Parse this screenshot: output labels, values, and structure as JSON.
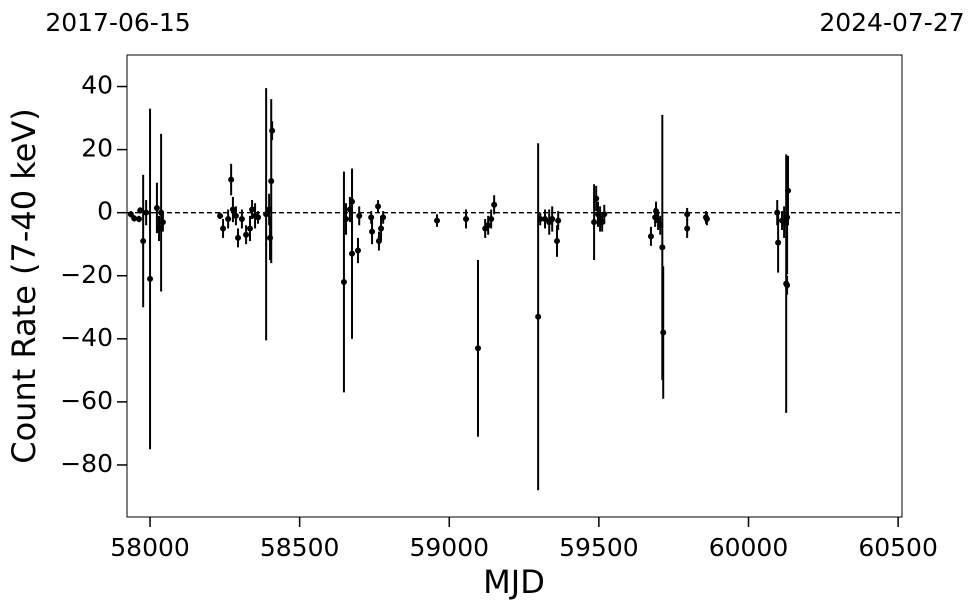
{
  "chart_data": {
    "type": "scatter",
    "annotations": [
      "2017-06-15",
      "2024-07-27"
    ],
    "xlabel": "MJD",
    "ylabel": "Count Rate (7-40 keV)",
    "color": "#000000",
    "hline": 0,
    "xlim": [
      57923,
      60513
    ],
    "ylim": [
      -96.5,
      50
    ],
    "xticks": [
      58000,
      58500,
      59000,
      59500,
      60000,
      60500
    ],
    "yticks": [
      {
        "value": -80,
        "label": "−80"
      },
      {
        "value": -60,
        "label": "−60"
      },
      {
        "value": -40,
        "label": "−40"
      },
      {
        "value": -20,
        "label": "−20"
      },
      0,
      20,
      40
    ],
    "x": [
      57936,
      57947,
      57963,
      57967,
      57977,
      57987,
      58000,
      58023,
      58030,
      58037,
      58043,
      58234,
      58244,
      58261,
      58271,
      58277,
      58287,
      58294,
      58307,
      58321,
      58334,
      58341,
      58351,
      58361,
      58388,
      58398,
      58401,
      58405,
      58408,
      58648,
      58655,
      58668,
      58675,
      58675,
      58695,
      58699,
      58739,
      58742,
      58762,
      58765,
      58772,
      58779,
      58959,
      59056,
      59096,
      59120,
      59130,
      59140,
      59150,
      59297,
      59304,
      59320,
      59334,
      59344,
      59360,
      59364,
      59484,
      59491,
      59497,
      59504,
      59511,
      59518,
      59674,
      59688,
      59691,
      59698,
      59705,
      59712,
      59715,
      59795,
      59795,
      59858,
      59861,
      60096,
      60099,
      60112,
      60119,
      60126,
      60129,
      60132,
      60129
    ],
    "values": [
      -0.5,
      -1.8,
      -2,
      0.7,
      -9,
      0,
      -21,
      1.5,
      -5,
      0,
      -3,
      -1,
      -5,
      -2,
      10.5,
      1,
      -1,
      -8,
      -2,
      -7,
      -5,
      1,
      -1,
      -1.5,
      -0.5,
      1,
      -8,
      10,
      26,
      -22,
      -2,
      1,
      3.5,
      -13,
      -12,
      -1,
      -1.5,
      -6,
      2,
      -9,
      -5,
      -1.5,
      -2.5,
      -2,
      -43,
      -5,
      -4,
      -2,
      2.5,
      -33,
      -2,
      -2,
      -3,
      -2,
      -9,
      -2.5,
      -3,
      4.5,
      -0.5,
      -2,
      -3,
      -0.5,
      -7.5,
      -1.5,
      0.5,
      -2.5,
      -4,
      -11,
      -38,
      -0.5,
      -5,
      -1.5,
      -2,
      0,
      -9.5,
      -2.5,
      -3,
      -22.5,
      -23,
      7,
      -1.5
    ],
    "errors": [
      1,
      1,
      1,
      1,
      21,
      4,
      54,
      8,
      4,
      25,
      3,
      1,
      3,
      3,
      5,
      4,
      3,
      3,
      3,
      3,
      4,
      3,
      4,
      2,
      40,
      5,
      7,
      26,
      3,
      35,
      5,
      4,
      10,
      27,
      4,
      3,
      2,
      4,
      2,
      3,
      4,
      2,
      2,
      3,
      28,
      3,
      3,
      3,
      3,
      55,
      2,
      3,
      4,
      4,
      5,
      3,
      12,
      4,
      4,
      4,
      3,
      3,
      3,
      3,
      3,
      3,
      3,
      42,
      21,
      2,
      3,
      2,
      2,
      4,
      9.5,
      3,
      5,
      41,
      3,
      11,
      18
    ]
  }
}
